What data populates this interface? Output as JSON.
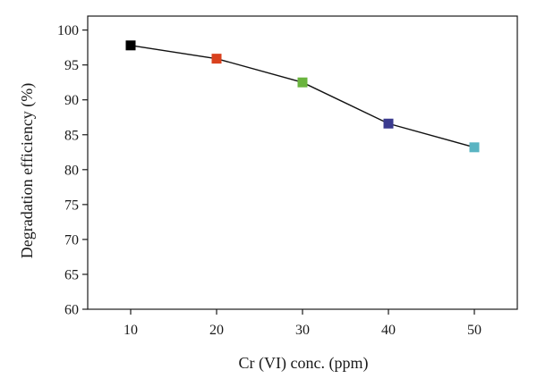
{
  "chart_data": {
    "type": "line",
    "title": "",
    "xlabel": "Cr (VI) conc. (ppm)",
    "ylabel": "Degradation efficiency (%)",
    "xlim": [
      5,
      55
    ],
    "ylim": [
      60,
      102
    ],
    "xticks": [
      10,
      20,
      30,
      40,
      50
    ],
    "yticks": [
      60,
      65,
      70,
      75,
      80,
      85,
      90,
      95,
      100
    ],
    "grid": false,
    "legend": "none",
    "series": [
      {
        "x": [
          10,
          20,
          30,
          40,
          50
        ],
        "y": [
          97.8,
          95.9,
          92.5,
          86.6,
          83.2
        ],
        "marker": "square",
        "line_color": "#111111",
        "marker_colors": [
          "#000000",
          "#d9411e",
          "#6ab43e",
          "#3b3b8f",
          "#5ab4c2"
        ]
      }
    ]
  }
}
